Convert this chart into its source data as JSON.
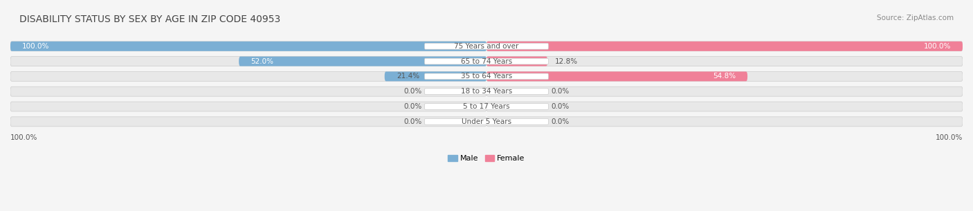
{
  "title": "DISABILITY STATUS BY SEX BY AGE IN ZIP CODE 40953",
  "source": "Source: ZipAtlas.com",
  "categories": [
    "Under 5 Years",
    "5 to 17 Years",
    "18 to 34 Years",
    "35 to 64 Years",
    "65 to 74 Years",
    "75 Years and over"
  ],
  "male_values": [
    0.0,
    0.0,
    0.0,
    21.4,
    52.0,
    100.0
  ],
  "female_values": [
    0.0,
    0.0,
    0.0,
    54.8,
    12.8,
    100.0
  ],
  "male_color": "#7bafd4",
  "female_color": "#f08098",
  "bar_bg_color": "#e8e8e8",
  "bar_border_color": "#cccccc",
  "label_color": "#555555",
  "title_color": "#444444",
  "fig_bg_color": "#f5f5f5",
  "max_value": 100.0
}
